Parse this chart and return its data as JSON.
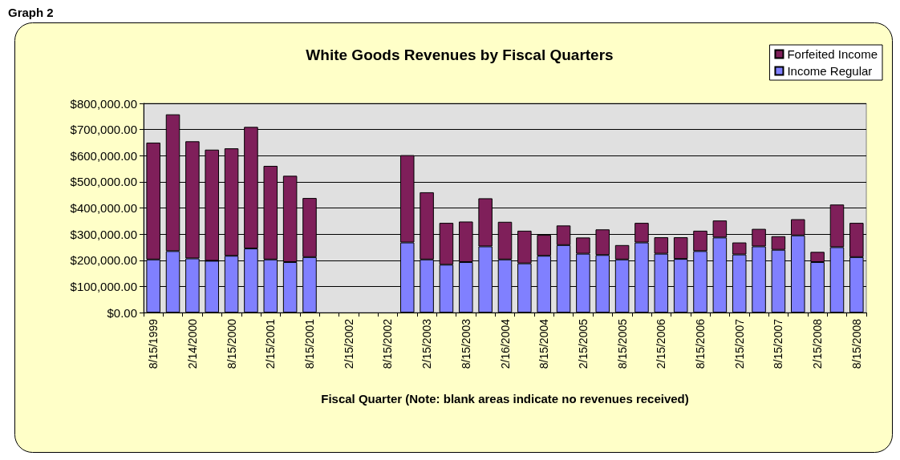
{
  "chart_data": {
    "type": "bar",
    "title": "White Goods Revenues by Fiscal Quarters",
    "xlabel": "Fiscal Quarter (Note: blank areas indicate no revenues received)",
    "annotations": [
      "Graph 2"
    ],
    "categories": [
      "8/15/1999",
      null,
      "2/14/2000",
      null,
      "8/15/2000",
      null,
      "2/15/2001",
      null,
      "8/15/2001",
      null,
      "2/15/2002",
      null,
      "8/15/2002",
      null,
      "2/15/2003",
      null,
      "8/15/2003",
      null,
      "2/16/2004",
      null,
      "8/15/2004",
      null,
      "2/15/2005",
      null,
      "8/15/2005",
      null,
      "2/15/2006",
      null,
      "8/15/2006",
      null,
      "2/15/2007",
      null,
      "8/15/2007",
      null,
      "2/15/2008",
      null,
      "8/15/2008"
    ],
    "stacked": true,
    "series": [
      {
        "name": "Income Regular",
        "color": "#8080ff",
        "values": [
          203000,
          235000,
          207000,
          198000,
          217000,
          245000,
          203000,
          193000,
          212000,
          null,
          null,
          null,
          null,
          268000,
          203000,
          183000,
          193000,
          253000,
          203000,
          188000,
          217000,
          258000,
          225000,
          220000,
          203000,
          268000,
          225000,
          205000,
          235000,
          287000,
          222000,
          253000,
          240000,
          295000,
          193000,
          250000,
          212000
        ]
      },
      {
        "name": "Forfeited Income",
        "color": "#7f1f5a",
        "values": [
          447000,
          523000,
          448000,
          425000,
          411000,
          465000,
          358000,
          330000,
          226000,
          null,
          null,
          null,
          null,
          334000,
          257000,
          160000,
          155000,
          184000,
          144000,
          125000,
          80000,
          75000,
          62000,
          98000,
          55000,
          75000,
          63000,
          83000,
          78000,
          65000,
          46000,
          67000,
          52000,
          62000,
          39000,
          163000,
          131000
        ]
      }
    ],
    "ylim": [
      0,
      800000
    ],
    "yticks": [
      {
        "value": 0,
        "label": "$0.00"
      },
      {
        "value": 100000,
        "label": "$100,000.00"
      },
      {
        "value": 200000,
        "label": "$200,000.00"
      },
      {
        "value": 300000,
        "label": "$300,000.00"
      },
      {
        "value": 400000,
        "label": "$400,000.00"
      },
      {
        "value": 500000,
        "label": "$500,000.00"
      },
      {
        "value": 600000,
        "label": "$600,000.00"
      },
      {
        "value": 700000,
        "label": "$700,000.00"
      },
      {
        "value": 800000,
        "label": "$800,000.00"
      }
    ],
    "grid": "y",
    "legend": "top right"
  }
}
